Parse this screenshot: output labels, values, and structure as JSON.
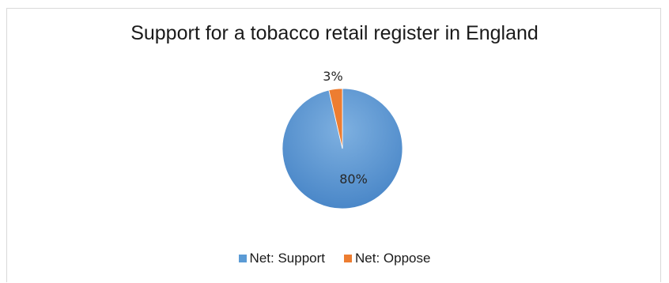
{
  "chart_data": {
    "type": "pie",
    "title": "Support for a tobacco retail register in England",
    "slices": [
      {
        "name": "Net: Support",
        "value": 80,
        "label": "80%",
        "color": "#5b9bd5"
      },
      {
        "name": "Net: Oppose",
        "value": 3,
        "label": "3%",
        "color": "#ed7d31"
      }
    ],
    "legend": "bottom"
  }
}
